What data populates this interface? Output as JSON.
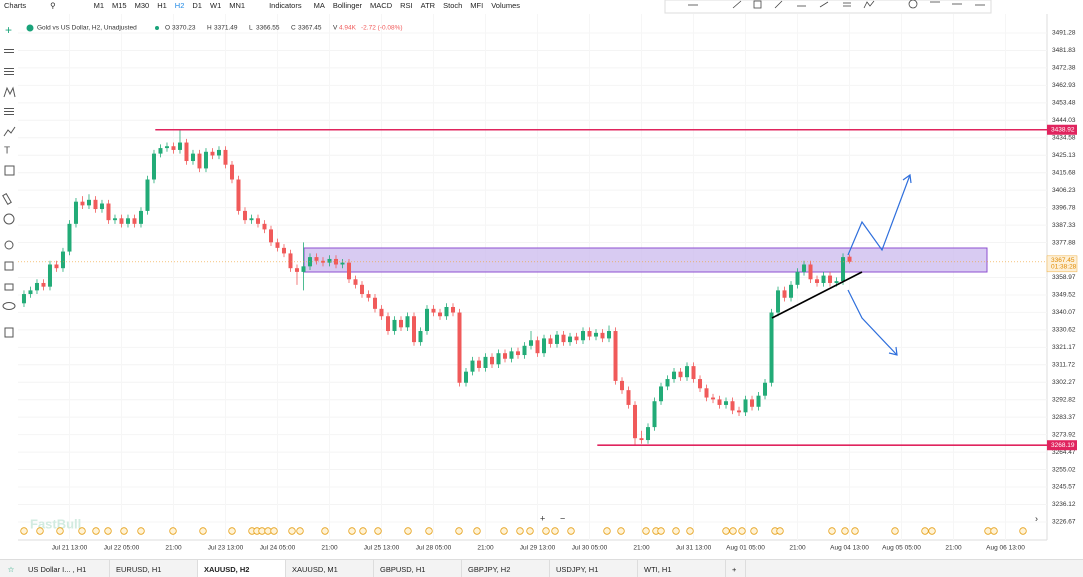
{
  "toolbar": {
    "menu": "Charts",
    "timeframes": [
      "M1",
      "M15",
      "M30",
      "H1",
      "H2",
      "D1",
      "W1",
      "MN1"
    ],
    "active_timeframe": 4,
    "indicators_button": "Indicators",
    "indicators": [
      "MA",
      "Bollinger",
      "MACD",
      "RSI",
      "ATR",
      "Stoch",
      "MFI",
      "Volumes"
    ]
  },
  "header": {
    "symbol": "Gold vs US Dollar, H2, Unadjusted",
    "o_label": "O",
    "h_label": "H",
    "l_label": "L",
    "c_label": "C",
    "v_label": "V",
    "volume": "4.94K",
    "change": "-2.72 (-0.08%)"
  },
  "watermark": "FastBull",
  "tabs": [
    "US Dollar I... , H1",
    "EURUSD, H1",
    "XAUUSD, H2",
    "XAUUSD, M1",
    "GBPUSD, H1",
    "GBPJPY, H2",
    "USDJPY, H1",
    "WTI, H1"
  ],
  "active_tab": 2,
  "chart_data": {
    "type": "candlestick",
    "up_color": "#22ab77",
    "down_color": "#f05a5a",
    "x": [
      0,
      1,
      2,
      3,
      4,
      5,
      6,
      7,
      8,
      9,
      10,
      11,
      12,
      13,
      14,
      15,
      16,
      17,
      18,
      19,
      20,
      21,
      22,
      23,
      24,
      25,
      26,
      27,
      28,
      29,
      30,
      31,
      32,
      33,
      34,
      35,
      36,
      37,
      38,
      39,
      40,
      41,
      42,
      43,
      44,
      45,
      46,
      47,
      48,
      49,
      50,
      51,
      52,
      53,
      54,
      55,
      56,
      57,
      58,
      59,
      60,
      61,
      62,
      63,
      64,
      65,
      66,
      67,
      68,
      69,
      70,
      71,
      72,
      73,
      74,
      75,
      76,
      77,
      78,
      79,
      80,
      81,
      82,
      83,
      84,
      85,
      86,
      87,
      88,
      89,
      90,
      91,
      92,
      93,
      94,
      95,
      96,
      97,
      98,
      99,
      100,
      101,
      102,
      103,
      104,
      105,
      106,
      107,
      108,
      109,
      110,
      111,
      112,
      113,
      114,
      115,
      116,
      117,
      118,
      119,
      120,
      121,
      122,
      123,
      124,
      125,
      126,
      127
    ],
    "ohlc": [
      [
        3345,
        3352,
        3343,
        3350
      ],
      [
        3350,
        3354,
        3348,
        3352
      ],
      [
        3352,
        3358,
        3350,
        3356
      ],
      [
        3356,
        3358,
        3352,
        3354
      ],
      [
        3354,
        3368,
        3352,
        3366
      ],
      [
        3366,
        3368,
        3362,
        3364
      ],
      [
        3364,
        3375,
        3362,
        3373
      ],
      [
        3373,
        3390,
        3371,
        3388
      ],
      [
        3388,
        3402,
        3386,
        3400
      ],
      [
        3400,
        3403,
        3396,
        3398
      ],
      [
        3398,
        3404,
        3396,
        3401
      ],
      [
        3401,
        3403,
        3394,
        3396
      ],
      [
        3396,
        3401,
        3394,
        3399
      ],
      [
        3399,
        3401,
        3388,
        3390
      ],
      [
        3390,
        3393,
        3388,
        3391
      ],
      [
        3391,
        3393,
        3386,
        3388
      ],
      [
        3388,
        3393,
        3386,
        3391
      ],
      [
        3391,
        3393,
        3386,
        3388
      ],
      [
        3388,
        3397,
        3386,
        3395
      ],
      [
        3395,
        3414,
        3393,
        3412
      ],
      [
        3412,
        3428,
        3410,
        3426
      ],
      [
        3426,
        3431,
        3424,
        3429
      ],
      [
        3429,
        3432,
        3427,
        3430
      ],
      [
        3430,
        3432,
        3426,
        3428
      ],
      [
        3428,
        3439,
        3426,
        3432
      ],
      [
        3432,
        3434,
        3420,
        3422
      ],
      [
        3422,
        3428,
        3420,
        3426
      ],
      [
        3426,
        3428,
        3416,
        3418
      ],
      [
        3418,
        3429,
        3416,
        3427
      ],
      [
        3427,
        3429,
        3423,
        3425
      ],
      [
        3425,
        3430,
        3423,
        3428
      ],
      [
        3428,
        3430,
        3418,
        3420
      ],
      [
        3420,
        3422,
        3410,
        3412
      ],
      [
        3412,
        3414,
        3393,
        3395
      ],
      [
        3395,
        3397,
        3388,
        3390
      ],
      [
        3390,
        3393,
        3388,
        3391
      ],
      [
        3391,
        3393,
        3386,
        3388
      ],
      [
        3388,
        3390,
        3383,
        3385
      ],
      [
        3385,
        3387,
        3376,
        3378
      ],
      [
        3378,
        3380,
        3373,
        3375
      ],
      [
        3375,
        3377,
        3370,
        3372
      ],
      [
        3372,
        3374,
        3362,
        3364
      ],
      [
        3364,
        3366,
        3355,
        3362
      ],
      [
        3362,
        3378,
        3352,
        3365
      ],
      [
        3365,
        3372,
        3363,
        3370
      ],
      [
        3370,
        3372,
        3366,
        3368
      ],
      [
        3368,
        3370,
        3365,
        3367
      ],
      [
        3367,
        3371,
        3365,
        3369
      ],
      [
        3369,
        3371,
        3364,
        3366
      ],
      [
        3366,
        3369,
        3364,
        3367
      ],
      [
        3367,
        3369,
        3356,
        3358
      ],
      [
        3358,
        3360,
        3353,
        3355
      ],
      [
        3355,
        3357,
        3348,
        3350
      ],
      [
        3350,
        3352,
        3346,
        3348
      ],
      [
        3348,
        3350,
        3340,
        3342
      ],
      [
        3342,
        3344,
        3336,
        3338
      ],
      [
        3338,
        3340,
        3328,
        3330
      ],
      [
        3330,
        3338,
        3328,
        3336
      ],
      [
        3336,
        3338,
        3330,
        3332
      ],
      [
        3332,
        3340,
        3330,
        3338
      ],
      [
        3338,
        3340,
        3322,
        3324
      ],
      [
        3324,
        3332,
        3322,
        3330
      ],
      [
        3330,
        3344,
        3328,
        3342
      ],
      [
        3342,
        3344,
        3338,
        3340
      ],
      [
        3340,
        3342,
        3336,
        3338
      ],
      [
        3338,
        3345,
        3336,
        3343
      ],
      [
        3343,
        3345,
        3338,
        3340
      ],
      [
        3340,
        3342,
        3300,
        3302
      ],
      [
        3302,
        3310,
        3300,
        3308
      ],
      [
        3308,
        3316,
        3306,
        3314
      ],
      [
        3314,
        3316,
        3308,
        3310
      ],
      [
        3310,
        3318,
        3308,
        3316
      ],
      [
        3316,
        3318,
        3310,
        3312
      ],
      [
        3312,
        3320,
        3310,
        3318
      ],
      [
        3318,
        3320,
        3313,
        3315
      ],
      [
        3315,
        3321,
        3313,
        3319
      ],
      [
        3319,
        3321,
        3315,
        3317
      ],
      [
        3317,
        3324,
        3315,
        3322
      ],
      [
        3322,
        3330,
        3320,
        3325
      ],
      [
        3325,
        3327,
        3316,
        3318
      ],
      [
        3318,
        3328,
        3316,
        3326
      ],
      [
        3326,
        3328,
        3321,
        3323
      ],
      [
        3323,
        3330,
        3321,
        3328
      ],
      [
        3328,
        3330,
        3322,
        3324
      ],
      [
        3324,
        3329,
        3322,
        3327
      ],
      [
        3327,
        3329,
        3323,
        3325
      ],
      [
        3325,
        3332,
        3323,
        3330
      ],
      [
        3330,
        3332,
        3325,
        3327
      ],
      [
        3327,
        3331,
        3325,
        3329
      ],
      [
        3329,
        3331,
        3324,
        3326
      ],
      [
        3326,
        3333,
        3324,
        3330
      ],
      [
        3330,
        3332,
        3301,
        3303
      ],
      [
        3303,
        3305,
        3296,
        3298
      ],
      [
        3298,
        3300,
        3288,
        3290
      ],
      [
        3290,
        3292,
        3268.5,
        3272
      ],
      [
        3272,
        3276,
        3269,
        3271
      ],
      [
        3271,
        3280,
        3269,
        3278
      ],
      [
        3278,
        3294,
        3276,
        3292
      ],
      [
        3292,
        3302,
        3290,
        3300
      ],
      [
        3300,
        3306,
        3298,
        3304
      ],
      [
        3304,
        3310,
        3302,
        3308
      ],
      [
        3308,
        3310,
        3303,
        3305
      ],
      [
        3305,
        3313,
        3303,
        3311
      ],
      [
        3311,
        3313,
        3302,
        3304
      ],
      [
        3304,
        3306,
        3297,
        3299
      ],
      [
        3299,
        3301,
        3292,
        3294
      ],
      [
        3294,
        3296,
        3291,
        3293
      ],
      [
        3293,
        3295,
        3288,
        3290
      ],
      [
        3290,
        3294,
        3288,
        3292
      ],
      [
        3292,
        3294,
        3285,
        3287
      ],
      [
        3287,
        3289,
        3284,
        3286
      ],
      [
        3286,
        3295,
        3284,
        3293
      ],
      [
        3293,
        3295,
        3287,
        3289
      ],
      [
        3289,
        3297,
        3287,
        3295
      ],
      [
        3295,
        3304,
        3293,
        3302
      ],
      [
        3302,
        3342,
        3300,
        3340
      ],
      [
        3340,
        3354,
        3338,
        3352
      ],
      [
        3352,
        3354,
        3346,
        3348
      ],
      [
        3348,
        3357,
        3346,
        3355
      ],
      [
        3355,
        3364,
        3353,
        3362
      ],
      [
        3362,
        3368,
        3360,
        3366
      ],
      [
        3366,
        3368,
        3356,
        3358
      ],
      [
        3358,
        3360,
        3354,
        3356
      ],
      [
        3356,
        3362,
        3354,
        3360
      ],
      [
        3360,
        3362,
        3354,
        3356
      ],
      [
        3356,
        3359,
        3354,
        3357
      ],
      [
        3357,
        3372,
        3355,
        3370
      ],
      [
        3370.23,
        3371.49,
        3366.55,
        3367.45
      ]
    ],
    "xlim": [
      -0.92,
      157.38
    ],
    "ylim": [
      3216.9,
      3499.4
    ],
    "grid": true,
    "yticks": [
      3491.28,
      3481.83,
      3472.38,
      3462.93,
      3453.48,
      3444.03,
      3434.58,
      3425.13,
      3415.68,
      3406.23,
      3396.78,
      3387.33,
      3377.88,
      3358.97,
      3349.52,
      3340.07,
      3330.62,
      3321.17,
      3311.72,
      3302.27,
      3292.82,
      3283.37,
      3273.92,
      3264.47,
      3255.02,
      3245.57,
      3236.12,
      3226.67
    ],
    "xticks": [
      {
        "value": 7,
        "label": "Jul 21 13:00"
      },
      {
        "value": 15,
        "label": "Jul 22 05:00"
      },
      {
        "value": 23,
        "label": "21:00"
      },
      {
        "value": 31,
        "label": "Jul 23 13:00"
      },
      {
        "value": 39,
        "label": "Jul 24 05:00"
      },
      {
        "value": 47,
        "label": "21:00"
      },
      {
        "value": 55,
        "label": "Jul 25 13:00"
      },
      {
        "value": 63,
        "label": "Jul 28 05:00"
      },
      {
        "value": 71,
        "label": "21:00"
      },
      {
        "value": 79,
        "label": "Jul 29 13:00"
      },
      {
        "value": 87,
        "label": "Jul 30 05:00"
      },
      {
        "value": 95,
        "label": "21:00"
      },
      {
        "value": 103,
        "label": "Jul 31 13:00"
      },
      {
        "value": 111,
        "label": "Aug 01 05:00"
      },
      {
        "value": 119,
        "label": "21:00"
      },
      {
        "value": 127,
        "label": "Aug 04 13:00"
      },
      {
        "value": 135,
        "label": "Aug 05 05:00"
      },
      {
        "value": 143,
        "label": "21:00"
      },
      {
        "value": 151,
        "label": "Aug 06 13:00"
      }
    ],
    "levels": [
      3438.92,
      3268.19
    ],
    "level_color": "#e0245e",
    "price_timer": "01:38:28"
  }
}
